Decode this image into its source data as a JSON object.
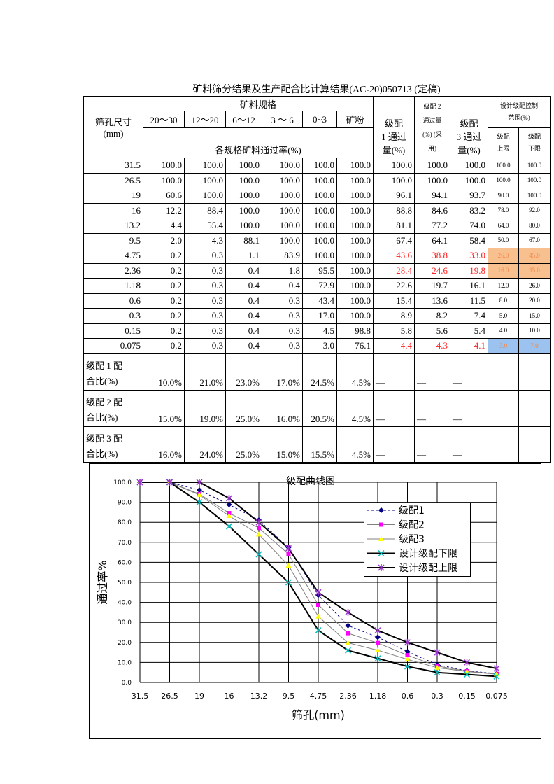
{
  "title": "矿料筛分结果及生产配合比计算结果(AC-20)050713 (定稿)",
  "table": {
    "sieve_header": [
      "筛孔尺寸",
      "(mm)"
    ],
    "spec_header": "矿料规格",
    "specs": [
      "20～30",
      "12～20",
      "6～12",
      "3 ～ 6",
      "0~3",
      "矿粉"
    ],
    "passing_header": "各规格矿料通过率(%)",
    "grade1_header": [
      "级配",
      "1 通过",
      "量(%)"
    ],
    "grade2_header": [
      "级配 2",
      "通过量",
      "(%) (采",
      "用)"
    ],
    "grade3_header": [
      "级配",
      "3 通过",
      "量(%)"
    ],
    "range_header": [
      "设计级配控制",
      "范围(%)"
    ],
    "upper_header": [
      "级配",
      "上限"
    ],
    "lower_header": [
      "级配",
      "下限"
    ],
    "rows": [
      {
        "cells": [
          "31.5",
          "100.0",
          "100.0",
          "100.0",
          "100.0",
          "100.0",
          "100.0",
          "100.0",
          "100.0",
          "100.0",
          "100.0",
          "100.0"
        ]
      },
      {
        "cells": [
          "26.5",
          "100.0",
          "100.0",
          "100.0",
          "100.0",
          "100.0",
          "100.0",
          "100.0",
          "100.0",
          "100.0",
          "100.0",
          "100.0"
        ]
      },
      {
        "cells": [
          "19",
          "60.6",
          "100.0",
          "100.0",
          "100.0",
          "100.0",
          "100.0",
          "96.1",
          "94.1",
          "93.7",
          "90.0",
          "100.0"
        ]
      },
      {
        "cells": [
          "16",
          "12.2",
          "88.4",
          "100.0",
          "100.0",
          "100.0",
          "100.0",
          "88.8",
          "84.6",
          "83.2",
          "78.0",
          "92.0"
        ]
      },
      {
        "cells": [
          "13.2",
          "4.4",
          "55.4",
          "100.0",
          "100.0",
          "100.0",
          "100.0",
          "81.1",
          "77.2",
          "74.0",
          "64.0",
          "80.0"
        ]
      },
      {
        "cells": [
          "9.5",
          "2.0",
          "4.3",
          "88.1",
          "100.0",
          "100.0",
          "100.0",
          "67.4",
          "64.1",
          "58.4",
          "50.0",
          "67.0"
        ]
      },
      {
        "cells": [
          "4.75",
          "0.2",
          "0.3",
          "1.1",
          "83.9",
          "100.0",
          "100.0",
          "43.6",
          "38.8",
          "33.0",
          "26.0",
          "45.0"
        ],
        "grade_color": "#ff2020",
        "limit_bg": "#f9c08f",
        "limit_color": "#f08a4b"
      },
      {
        "cells": [
          "2.36",
          "0.2",
          "0.3",
          "0.4",
          "1.8",
          "95.5",
          "100.0",
          "28.4",
          "24.6",
          "19.8",
          "16.0",
          "35.0"
        ],
        "grade_color": "#ff2020",
        "limit_bg": "#f9c08f",
        "limit_color": "#f08a4b"
      },
      {
        "cells": [
          "1.18",
          "0.2",
          "0.3",
          "0.4",
          "0.4",
          "72.9",
          "100.0",
          "22.6",
          "19.7",
          "16.1",
          "12.0",
          "26.0"
        ]
      },
      {
        "cells": [
          "0.6",
          "0.2",
          "0.3",
          "0.4",
          "0.3",
          "43.4",
          "100.0",
          "15.4",
          "13.6",
          "11.5",
          "8.0",
          "20.0"
        ]
      },
      {
        "cells": [
          "0.3",
          "0.2",
          "0.3",
          "0.4",
          "0.3",
          "17.0",
          "100.0",
          "8.9",
          "8.2",
          "7.4",
          "5.0",
          "15.0"
        ]
      },
      {
        "cells": [
          "0.15",
          "0.2",
          "0.3",
          "0.4",
          "0.3",
          "4.5",
          "98.8",
          "5.8",
          "5.6",
          "5.4",
          "4.0",
          "10.0"
        ]
      },
      {
        "cells": [
          "0.075",
          "0.2",
          "0.3",
          "0.4",
          "0.3",
          "3.0",
          "76.1",
          "4.4",
          "4.3",
          "4.1",
          "3.0",
          "7.0"
        ],
        "grade_color": "#ff2020",
        "limit_bg": "#9cc3ef",
        "limit_color": "#f08a4b"
      }
    ],
    "mix_rows": [
      {
        "label": [
          "级配 1 配",
          "合比(%)"
        ],
        "cells": [
          "10.0%",
          "21.0%",
          "23.0%",
          "17.0%",
          "24.5%",
          "4.5%",
          "—",
          "—",
          "—"
        ]
      },
      {
        "label": [
          "级配 2 配",
          "合比(%)"
        ],
        "cells": [
          "15.0%",
          "19.0%",
          "25.0%",
          "16.0%",
          "20.5%",
          "4.5%",
          "—",
          "—",
          "—"
        ]
      },
      {
        "label": [
          "级配 3 配",
          "合比(%)"
        ],
        "cells": [
          "16.0%",
          "24.0%",
          "25.0%",
          "15.0%",
          "15.5%",
          "4.5%",
          "—",
          "—",
          "—"
        ]
      }
    ]
  },
  "chart_data": {
    "type": "line",
    "title": "级配曲线图",
    "x_label": "筛孔(mm)",
    "y_label": "通过率%",
    "categories": [
      "31.5",
      "26.5",
      "19",
      "16",
      "13.2",
      "9.5",
      "4.75",
      "2.36",
      "1.18",
      "0.6",
      "0.3",
      "0.15",
      "0.075"
    ],
    "ylim": [
      0,
      100
    ],
    "yticks": [
      {
        "value": 0,
        "label": "0.0"
      },
      {
        "value": 10,
        "label": "10.0"
      },
      {
        "value": 20,
        "label": "20.0"
      },
      {
        "value": 30,
        "label": "30.0"
      },
      {
        "value": 40,
        "label": "40.0"
      },
      {
        "value": 50,
        "label": "50.0"
      },
      {
        "value": 60,
        "label": "60.0"
      },
      {
        "value": 70,
        "label": "70.0"
      },
      {
        "value": 80,
        "label": "80.0"
      },
      {
        "value": 90,
        "label": "90.0"
      },
      {
        "value": 100,
        "label": "100.0"
      }
    ],
    "grid": true,
    "series": [
      {
        "name": "级配1",
        "color": "#000080",
        "line_color": "#000080",
        "dash": true,
        "width": 1,
        "marker": "diamond",
        "values": [
          100,
          100,
          96.1,
          88.8,
          81.1,
          67.4,
          43.6,
          28.4,
          22.6,
          15.4,
          8.9,
          5.8,
          4.4
        ]
      },
      {
        "name": "级配2",
        "color": "#ff00ff",
        "line_color": "#808080",
        "dash": false,
        "width": 1,
        "marker": "square",
        "values": [
          100,
          100,
          94.1,
          84.6,
          77.2,
          64.1,
          38.8,
          24.6,
          19.7,
          13.6,
          8.2,
          5.6,
          4.3
        ]
      },
      {
        "name": "级配3",
        "color": "#ffff00",
        "line_color": "#808080",
        "dash": false,
        "width": 1,
        "marker": "triangle",
        "values": [
          100,
          100,
          93.7,
          83.2,
          74.0,
          58.4,
          33.0,
          19.8,
          16.1,
          11.5,
          7.4,
          5.4,
          4.1
        ]
      },
      {
        "name": "设计级配下限",
        "color": "#00c0c0",
        "line_color": "#000000",
        "dash": false,
        "width": 2,
        "marker": "x",
        "values": [
          100,
          100,
          90,
          78,
          64,
          50,
          26,
          16,
          12,
          8,
          5,
          4,
          3
        ]
      },
      {
        "name": "设计级配上限",
        "color": "#9933cc",
        "line_color": "#000000",
        "dash": false,
        "width": 2,
        "marker": "star",
        "values": [
          100,
          100,
          100,
          92,
          80,
          67,
          45,
          35,
          26,
          20,
          15,
          10,
          7
        ]
      }
    ]
  }
}
